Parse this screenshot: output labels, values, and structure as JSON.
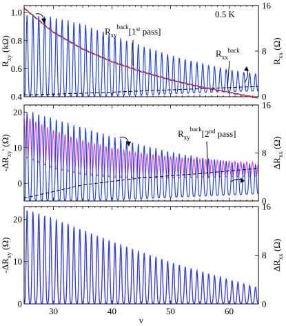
{
  "colors": {
    "data_blue": "#2546d8",
    "data_red": "#e01818",
    "data_magenta": "#e23ee0",
    "background_dash": "#000000",
    "axis": "#000000"
  },
  "chart_data": [
    {
      "type": "line",
      "panel": "top",
      "title": "",
      "xlabel": "",
      "xlim": [
        25,
        65
      ],
      "ylabel": "R_xy (kΩ)",
      "ylim": [
        0.4,
        1.05
      ],
      "yticks": [
        "0.4",
        "0.6",
        "0.8",
        "1.0"
      ],
      "y2label": "R_xx (Ω)",
      "y2lim": [
        0,
        16
      ],
      "y2ticks": [
        "0",
        "8",
        "16"
      ],
      "annotations": [
        "0.5 K",
        "R_xy^back [1^st pass]",
        "R_xx^back"
      ],
      "series": [
        {
          "role": "R_xy trace (blue, left axis)",
          "x": [
            25,
            30,
            35,
            40,
            45,
            50,
            55,
            60,
            65
          ],
          "y": [
            1.03,
            0.86,
            0.74,
            0.65,
            0.58,
            0.52,
            0.47,
            0.43,
            0.39
          ]
        },
        {
          "role": "R_xy^back fit (red, left axis)",
          "x": [
            25,
            30,
            35,
            40,
            45,
            50,
            55,
            60,
            65
          ],
          "y": [
            1.03,
            0.86,
            0.74,
            0.65,
            0.58,
            0.52,
            0.47,
            0.43,
            0.39
          ]
        },
        {
          "role": "R_xx oscillation maxima (blue, right axis)",
          "x": [
            26.8,
            30,
            35,
            40,
            45,
            50,
            55,
            60,
            64.5
          ],
          "y": [
            14.4,
            14.0,
            12.8,
            10.8,
            9.0,
            7.3,
            5.9,
            4.7,
            4.0
          ]
        },
        {
          "role": "R_xx oscillation minima (blue, right axis)",
          "x": [
            26,
            30,
            35,
            40,
            45,
            50,
            55,
            60,
            65
          ],
          "y": [
            0.1,
            0.1,
            0.1,
            0.2,
            0.3,
            0.5,
            0.7,
            0.9,
            1.0
          ]
        },
        {
          "role": "R_xx^back (dashed, right axis)",
          "x": [
            25,
            35,
            45,
            55,
            65
          ],
          "y": [
            0.3,
            0.6,
            1.0,
            1.4,
            1.8
          ]
        }
      ]
    },
    {
      "type": "line",
      "panel": "middle",
      "title": "",
      "xlabel": "",
      "xlim": [
        25,
        65
      ],
      "ylabel": "-ΔR_xy' (Ω)",
      "ylim": [
        -5,
        22
      ],
      "yticks": [
        "0",
        "10",
        "20"
      ],
      "y2label": "ΔR_xx (Ω)",
      "y2lim": [
        0,
        16
      ],
      "y2ticks": [
        "0",
        "8",
        "16"
      ],
      "annotations": [
        "R_xy^back [2^nd pass]"
      ],
      "series": [
        {
          "role": "-ΔR_xy' (magenta, left axis)",
          "x": [
            25,
            30,
            35,
            40,
            45,
            50,
            55,
            60,
            65
          ],
          "y": [
            19,
            15,
            12,
            10,
            8.5,
            7.5,
            6.8,
            6.2,
            5.8
          ]
        },
        {
          "role": "ΔR_xx maxima (blue, right axis)",
          "x": [
            26.5,
            30,
            35,
            40,
            45,
            50,
            55,
            60,
            65
          ],
          "y": [
            14.8,
            13.8,
            12.3,
            10.8,
            9.4,
            8.2,
            7.3,
            6.6,
            6.0
          ]
        },
        {
          "role": "ΔR_xx minima (blue, right axis)",
          "x": [
            26,
            30,
            35,
            40,
            45,
            50,
            55,
            60,
            65
          ],
          "y": [
            0.0,
            0.0,
            0.1,
            0.2,
            0.4,
            0.6,
            0.8,
            1.0,
            1.2
          ]
        },
        {
          "role": "R_xy^back 2nd pass (dashed)",
          "x": [
            25,
            35,
            45,
            55,
            65
          ],
          "y": [
            -4.2,
            -0.5,
            1.5,
            2.7,
            4.2
          ]
        }
      ]
    },
    {
      "type": "line",
      "panel": "bottom",
      "title": "",
      "xlabel": "ν",
      "xlim": [
        25,
        65
      ],
      "xticks": [
        "30",
        "40",
        "50",
        "60"
      ],
      "ylabel": "-ΔR_xy (Ω)",
      "ylim": [
        0,
        23
      ],
      "yticks": [
        "0",
        "10",
        "20"
      ],
      "y2label": "ΔR_xx (Ω)",
      "y2lim": [
        0,
        16
      ],
      "y2ticks": [
        "0",
        "8",
        "16"
      ],
      "annotations": [],
      "series": [
        {
          "role": "-ΔR_xy (magenta, left axis)",
          "x": [
            25,
            30,
            35,
            40,
            45,
            50,
            55,
            60,
            65
          ],
          "y": [
            22.5,
            20.3,
            17.5,
            14.8,
            12.3,
            9.9,
            7.7,
            5.7,
            3.8
          ]
        },
        {
          "role": "ΔR_xx (blue, right axis)",
          "x": [
            25,
            30,
            35,
            40,
            45,
            50,
            55,
            60,
            65
          ],
          "y": [
            15.6,
            14.1,
            12.2,
            10.3,
            8.6,
            6.9,
            5.4,
            4.0,
            2.6
          ]
        }
      ]
    }
  ]
}
